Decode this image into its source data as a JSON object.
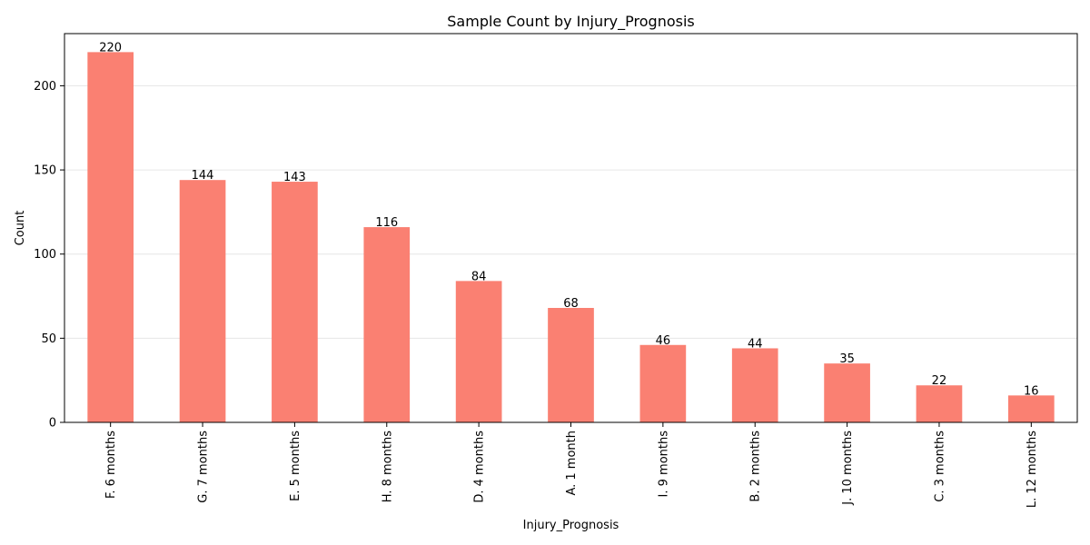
{
  "chart_data": {
    "type": "bar",
    "title": "Sample Count by Injury_Prognosis",
    "xlabel": "Injury_Prognosis",
    "ylabel": "Count",
    "categories": [
      "F. 6 months",
      "G. 7 months",
      "E. 5 months",
      "H. 8 months",
      "D. 4 months",
      "A. 1 month",
      "I. 9 months",
      "B. 2 months",
      "J. 10 months",
      "C. 3 months",
      "L. 12 months"
    ],
    "values": [
      220,
      144,
      143,
      116,
      84,
      68,
      46,
      44,
      35,
      22,
      16
    ],
    "ylim": [
      0,
      231
    ],
    "yticks": [
      0,
      50,
      100,
      150,
      200
    ],
    "grid": "horizontal",
    "bar_color": "#fa8072",
    "data_labels": true
  }
}
